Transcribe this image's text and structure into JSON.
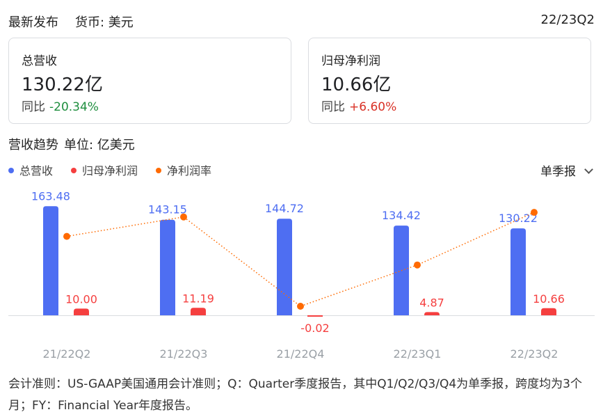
{
  "header": {
    "title": "最新发布",
    "currency": "货币: 美元",
    "period": "22/23Q2"
  },
  "cards": [
    {
      "label": "总营收",
      "value": "130.22亿",
      "yoy_label": "同比",
      "yoy_value": "-20.34%"
    },
    {
      "label": "归母净利润",
      "value": "10.66亿",
      "yoy_label": "同比",
      "yoy_value": "+6.60%"
    }
  ],
  "trend": {
    "title": "营收趋势",
    "unit": "单位: 亿美元"
  },
  "legend": [
    {
      "label": "总营收",
      "color": "#4e6ef2"
    },
    {
      "label": "归母净利润",
      "color": "#f53f3f"
    },
    {
      "label": "净利润率",
      "color": "#ff6a00"
    }
  ],
  "period_select": {
    "label": "单季报",
    "icon": "chevron-down-icon"
  },
  "chart_data": {
    "type": "bar",
    "categories": [
      "21/22Q2",
      "21/22Q3",
      "21/22Q4",
      "22/23Q1",
      "22/23Q2"
    ],
    "series": [
      {
        "name": "总营收",
        "type": "bar",
        "color": "#4e6ef2",
        "values": [
          163.48,
          143.15,
          144.72,
          134.42,
          130.22
        ],
        "labels": [
          "163.48",
          "143.15",
          "144.72",
          "134.42",
          "130.22"
        ]
      },
      {
        "name": "归母净利润",
        "type": "bar",
        "color": "#f53f3f",
        "values": [
          10.0,
          11.19,
          -0.02,
          4.87,
          10.66
        ],
        "labels": [
          "10.00",
          "11.19",
          "-0.02",
          "4.87",
          "10.66"
        ]
      },
      {
        "name": "净利润率",
        "type": "line",
        "color": "#ff6a00",
        "line_style": "dotted",
        "values": [
          6.1,
          7.8,
          -0.01,
          3.6,
          8.2
        ]
      }
    ],
    "ylim": [
      0,
      170
    ],
    "margin_ylim": [
      -0.5,
      9
    ],
    "grid": false,
    "legend_position": "top-left"
  },
  "footnote": "会计准则：US-GAAP美国通用会计准则；Q：Quarter季度报告，其中Q1/Q2/Q3/Q4为单季报，跨度均为3个月；FY：Financial Year年度报告。"
}
